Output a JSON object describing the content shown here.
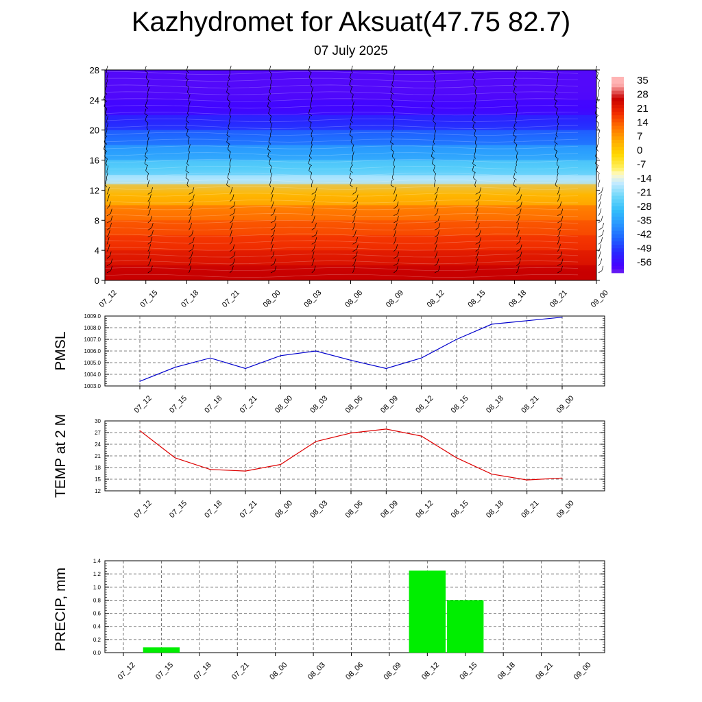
{
  "header": {
    "title": "Kazhydromet for Aksuat(47.75 82.7)",
    "date": "07 July 2025"
  },
  "chart_data": [
    {
      "type": "heatmap",
      "name": "cross-section",
      "x": [
        "07_12",
        "07_15",
        "07_18",
        "07_21",
        "08_00",
        "08_03",
        "08_06",
        "08_09",
        "08_12",
        "08_15",
        "08_18",
        "08_21",
        "09_00"
      ],
      "ylim": [
        0,
        28
      ],
      "yticks": [
        0,
        4,
        8,
        12,
        16,
        20,
        24,
        28
      ],
      "colorbar": {
        "labels": [
          35,
          28,
          21,
          14,
          7,
          0,
          -7,
          -14,
          -21,
          -28,
          -35,
          -42,
          -49,
          -56
        ]
      },
      "bands": [
        {
          "y0": 0,
          "y1": 2,
          "value": 28
        },
        {
          "y0": 2,
          "y1": 4,
          "value": 24
        },
        {
          "y0": 4,
          "y1": 6,
          "value": 20
        },
        {
          "y0": 6,
          "y1": 8,
          "value": 17
        },
        {
          "y0": 8,
          "y1": 10,
          "value": 13
        },
        {
          "y0": 10,
          "y1": 12.8,
          "value": 5
        },
        {
          "y0": 12.8,
          "y1": 14,
          "value": -16
        },
        {
          "y0": 14,
          "y1": 16,
          "value": -24
        },
        {
          "y0": 16,
          "y1": 18,
          "value": -33
        },
        {
          "y0": 18,
          "y1": 20,
          "value": -41
        },
        {
          "y0": 20,
          "y1": 22,
          "value": -49
        },
        {
          "y0": 22,
          "y1": 24,
          "value": -55
        },
        {
          "y0": 24,
          "y1": 28,
          "value": -57
        }
      ],
      "grid": false,
      "wind_barbs": true
    },
    {
      "type": "line",
      "name": "pmsl",
      "ylabel": "PMSL",
      "x": [
        "07_12",
        "07_15",
        "07_18",
        "07_21",
        "08_00",
        "08_03",
        "08_06",
        "08_09",
        "08_12",
        "08_15",
        "08_18",
        "08_21",
        "09_00"
      ],
      "values": [
        1003.4,
        1004.6,
        1005.4,
        1004.5,
        1005.6,
        1006.0,
        1005.2,
        1004.5,
        1005.4,
        1007.0,
        1008.3,
        1008.6,
        1008.9
      ],
      "ylim": [
        1003.0,
        1009.0
      ],
      "yticks": [
        "1003.0",
        "1004.0",
        "1005.0",
        "1006.0",
        "1007.0",
        "1008.0",
        "1009.0"
      ],
      "color": "#0000cc",
      "grid": true
    },
    {
      "type": "line",
      "name": "temp",
      "ylabel": "TEMP at 2 M",
      "x": [
        "07_12",
        "07_15",
        "07_18",
        "07_21",
        "08_00",
        "08_03",
        "08_06",
        "08_09",
        "08_12",
        "08_15",
        "08_18",
        "08_21",
        "09_00"
      ],
      "values": [
        27.5,
        20.5,
        17.5,
        17.1,
        18.8,
        24.7,
        26.9,
        27.9,
        26.1,
        20.5,
        16.3,
        14.8,
        15.3
      ],
      "ylim": [
        12,
        30
      ],
      "yticks": [
        "12",
        "15",
        "18",
        "21",
        "24",
        "27",
        "30"
      ],
      "color": "#dd0000",
      "grid": true
    },
    {
      "type": "bar",
      "name": "precip",
      "ylabel": "PRECIP, mm",
      "categories": [
        "07_12",
        "07_15",
        "07_18",
        "07_21",
        "08_00",
        "08_03",
        "08_06",
        "08_09",
        "08_12",
        "08_15",
        "08_18",
        "08_21",
        "09_00"
      ],
      "values": [
        0,
        0.08,
        0,
        0,
        0,
        0,
        0,
        0,
        1.25,
        0.8,
        0,
        0,
        0
      ],
      "ylim": [
        0,
        1.4
      ],
      "yticks": [
        "0.0",
        "0.2",
        "0.4",
        "0.6",
        "0.8",
        "1.0",
        "1.2",
        "1.4"
      ],
      "color": "#00ee00",
      "grid": true
    }
  ]
}
